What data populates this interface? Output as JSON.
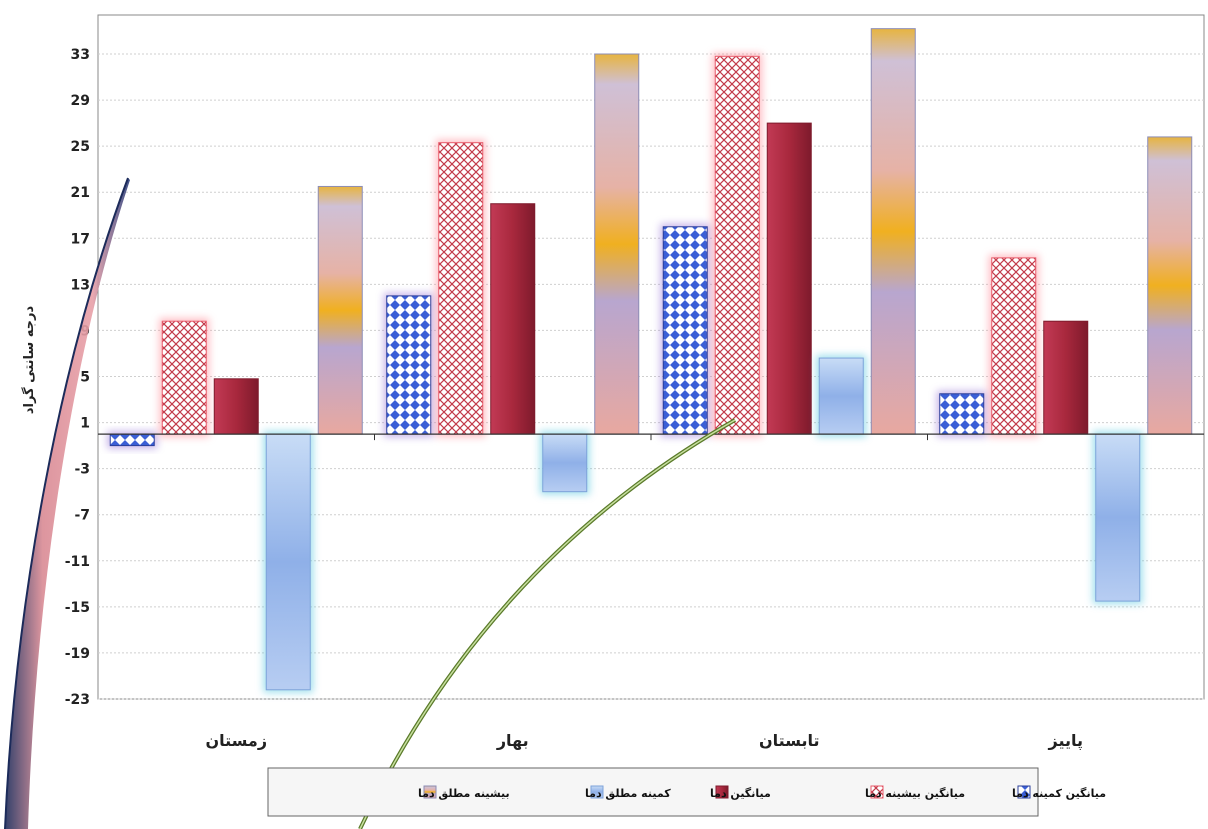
{
  "chart_data": {
    "type": "bar",
    "title": "",
    "xlabel": "",
    "ylabel": "درجه سانتی گراد",
    "categories": [
      "زمستان",
      "بهار",
      "تابستان",
      "پاییز"
    ],
    "series": [
      {
        "name": "میانگین کمینه دما",
        "values": [
          -1,
          12,
          18,
          3.5
        ],
        "color": "#3b5fd6"
      },
      {
        "name": "میانگین بیشینه دما",
        "values": [
          9.8,
          25.3,
          32.8,
          15.3
        ],
        "color": "#d94a5a"
      },
      {
        "name": "میانگین دما",
        "values": [
          4.8,
          20,
          27,
          9.8
        ],
        "color": "#a8283d"
      },
      {
        "name": "کمینه مطلق دما",
        "values": [
          -22.2,
          -5,
          6.6,
          -14.5
        ],
        "color": "#9ab8ea"
      },
      {
        "name": "بیشینه مطلق دما",
        "values": [
          21.5,
          33,
          35.2,
          25.8
        ],
        "color": "#e8b04a"
      }
    ],
    "yticks": [
      33,
      29,
      25,
      21,
      17,
      13,
      9,
      5,
      1,
      -3,
      -7,
      -11,
      -15,
      -19,
      -23
    ],
    "ylim": [
      -23,
      36
    ],
    "grid": true,
    "legend_position": "bottom"
  }
}
